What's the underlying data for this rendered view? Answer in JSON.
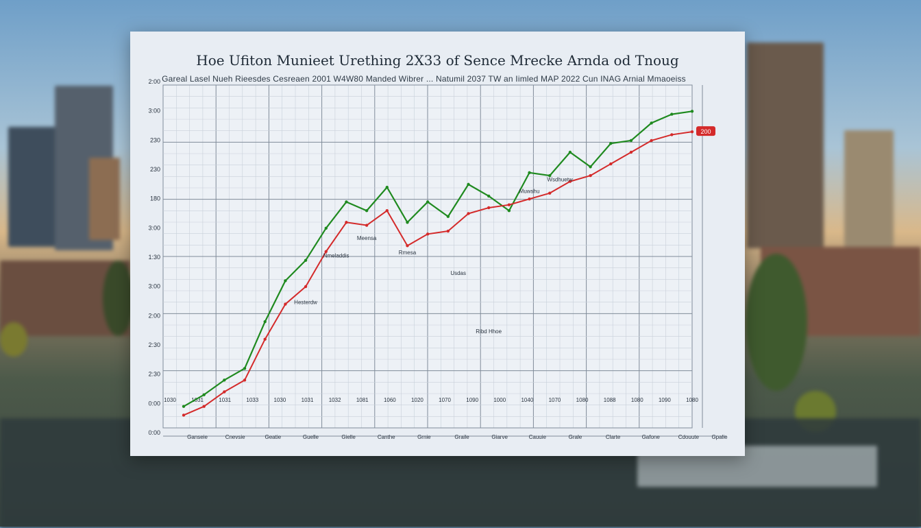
{
  "chart_data": {
    "type": "line",
    "title": "Hoe Ufiton Munieet Urething  2X33 of Sence Mrecke Arnda od Tnoug",
    "subtitle": "Gareal Lasel Nueh Rieesdes Cesreaen 2001 W4W80 Manded Wibrer ... Natumil 2037 TW an Iimled MAP 2022 Cun INAG Arnial Mmaoeiss",
    "ytick_labels": [
      "2:00",
      "3:00",
      "230",
      "230",
      "180",
      "3:00",
      "1:30",
      "3:00",
      "2:00",
      "2:30",
      "2:30",
      "0:00",
      "0:00"
    ],
    "xtick_labels": [
      "1030",
      "1031",
      "1031",
      "1033",
      "1030",
      "1031",
      "1032",
      "1081",
      "1060",
      "1020",
      "1070",
      "1090",
      "1000",
      "1040",
      "1070",
      "1080",
      "1088",
      "1080",
      "1090",
      "1080"
    ],
    "bottom_labels": [
      "Ganseie",
      "Cnevsie",
      "Geatie",
      "Guelle",
      "Gielle",
      "Canthe",
      "Grnie",
      "Graile",
      "Giarve",
      "Cauuie",
      "Grale",
      "Clarte",
      "Gafone",
      "Cdouute",
      "Gpalie"
    ],
    "series": [
      {
        "color": "#1f8a1f",
        "x": [
          0,
          4,
          8,
          12,
          16,
          20,
          24,
          28,
          32,
          36,
          40,
          44,
          48,
          52,
          56,
          60,
          64,
          68,
          72,
          76,
          80,
          84,
          88,
          92,
          96,
          100
        ],
        "y": [
          5,
          9,
          14,
          18,
          34,
          48,
          55,
          66,
          75,
          72,
          80,
          68,
          75,
          70,
          81,
          77,
          72,
          85,
          84,
          92,
          87,
          95,
          96,
          102,
          105,
          106
        ]
      },
      {
        "color": "#d42a2a",
        "x": [
          0,
          4,
          8,
          12,
          16,
          20,
          24,
          28,
          32,
          36,
          40,
          44,
          48,
          52,
          56,
          60,
          64,
          68,
          72,
          76,
          80,
          84,
          88,
          92,
          96,
          100
        ],
        "y": [
          2,
          5,
          10,
          14,
          28,
          40,
          46,
          58,
          68,
          67,
          72,
          60,
          64,
          65,
          71,
          73,
          74,
          76,
          78,
          82,
          84,
          88,
          92,
          96,
          98,
          99
        ]
      }
    ],
    "annotations": [
      "Ribd Hhoe",
      "Hesterdw",
      "Nmeladdis",
      "Meensa",
      "Rmesa",
      "Usdas",
      "Muwshu",
      "Wsdhuetw"
    ],
    "end_marker_label": "200"
  }
}
